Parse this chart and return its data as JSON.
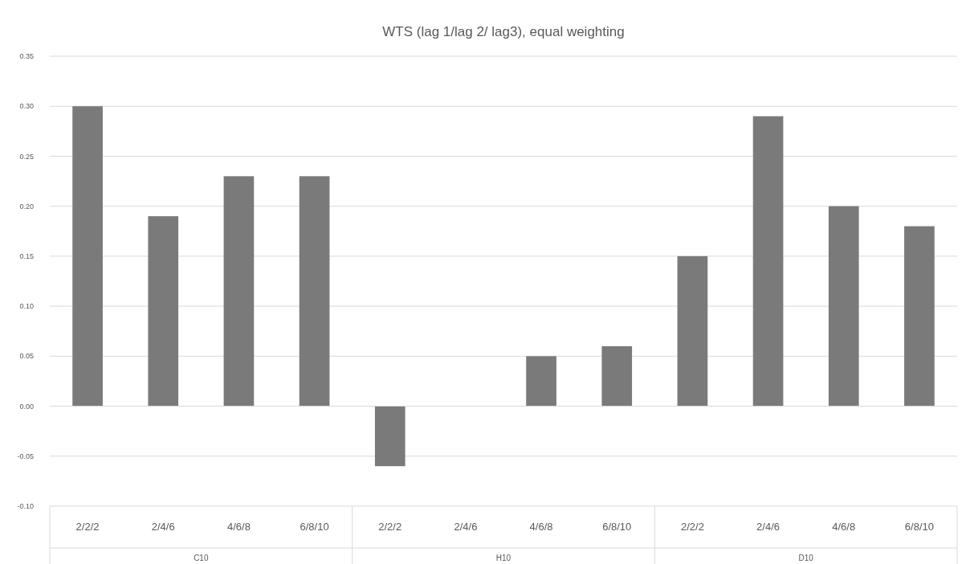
{
  "chart_data": {
    "type": "bar",
    "title": "WTS (lag 1/lag 2/ lag3), equal weighting",
    "categories": [
      "2/2/2",
      "2/4/6",
      "4/6/8",
      "6/8/10",
      "2/2/2",
      "2/4/6",
      "4/6/8",
      "6/8/10",
      "2/2/2",
      "2/4/6",
      "4/6/8",
      "6/8/10"
    ],
    "values": [
      0.3,
      0.19,
      0.23,
      0.23,
      -0.06,
      null,
      0.05,
      0.06,
      0.15,
      0.29,
      0.2,
      0.18
    ],
    "color": "#7a7a7a",
    "ylim": [
      -0.1,
      0.35
    ],
    "yticks": [
      {
        "value": -0.1,
        "label": "-0.10"
      },
      {
        "value": -0.05,
        "label": "-0.05"
      },
      {
        "value": 0,
        "label": "0.00"
      },
      {
        "value": 0.05,
        "label": "0.05"
      },
      {
        "value": 0.1,
        "label": "0.10"
      },
      {
        "value": 0.15,
        "label": "0.15"
      },
      {
        "value": 0.2,
        "label": "0.20"
      },
      {
        "value": 0.25,
        "label": "0.25"
      },
      {
        "value": 0.3,
        "label": "0.30"
      },
      {
        "value": 0.35,
        "label": "0.35"
      }
    ],
    "grid": "y",
    "annotations": [
      "C10",
      "H10",
      "D10"
    ]
  }
}
